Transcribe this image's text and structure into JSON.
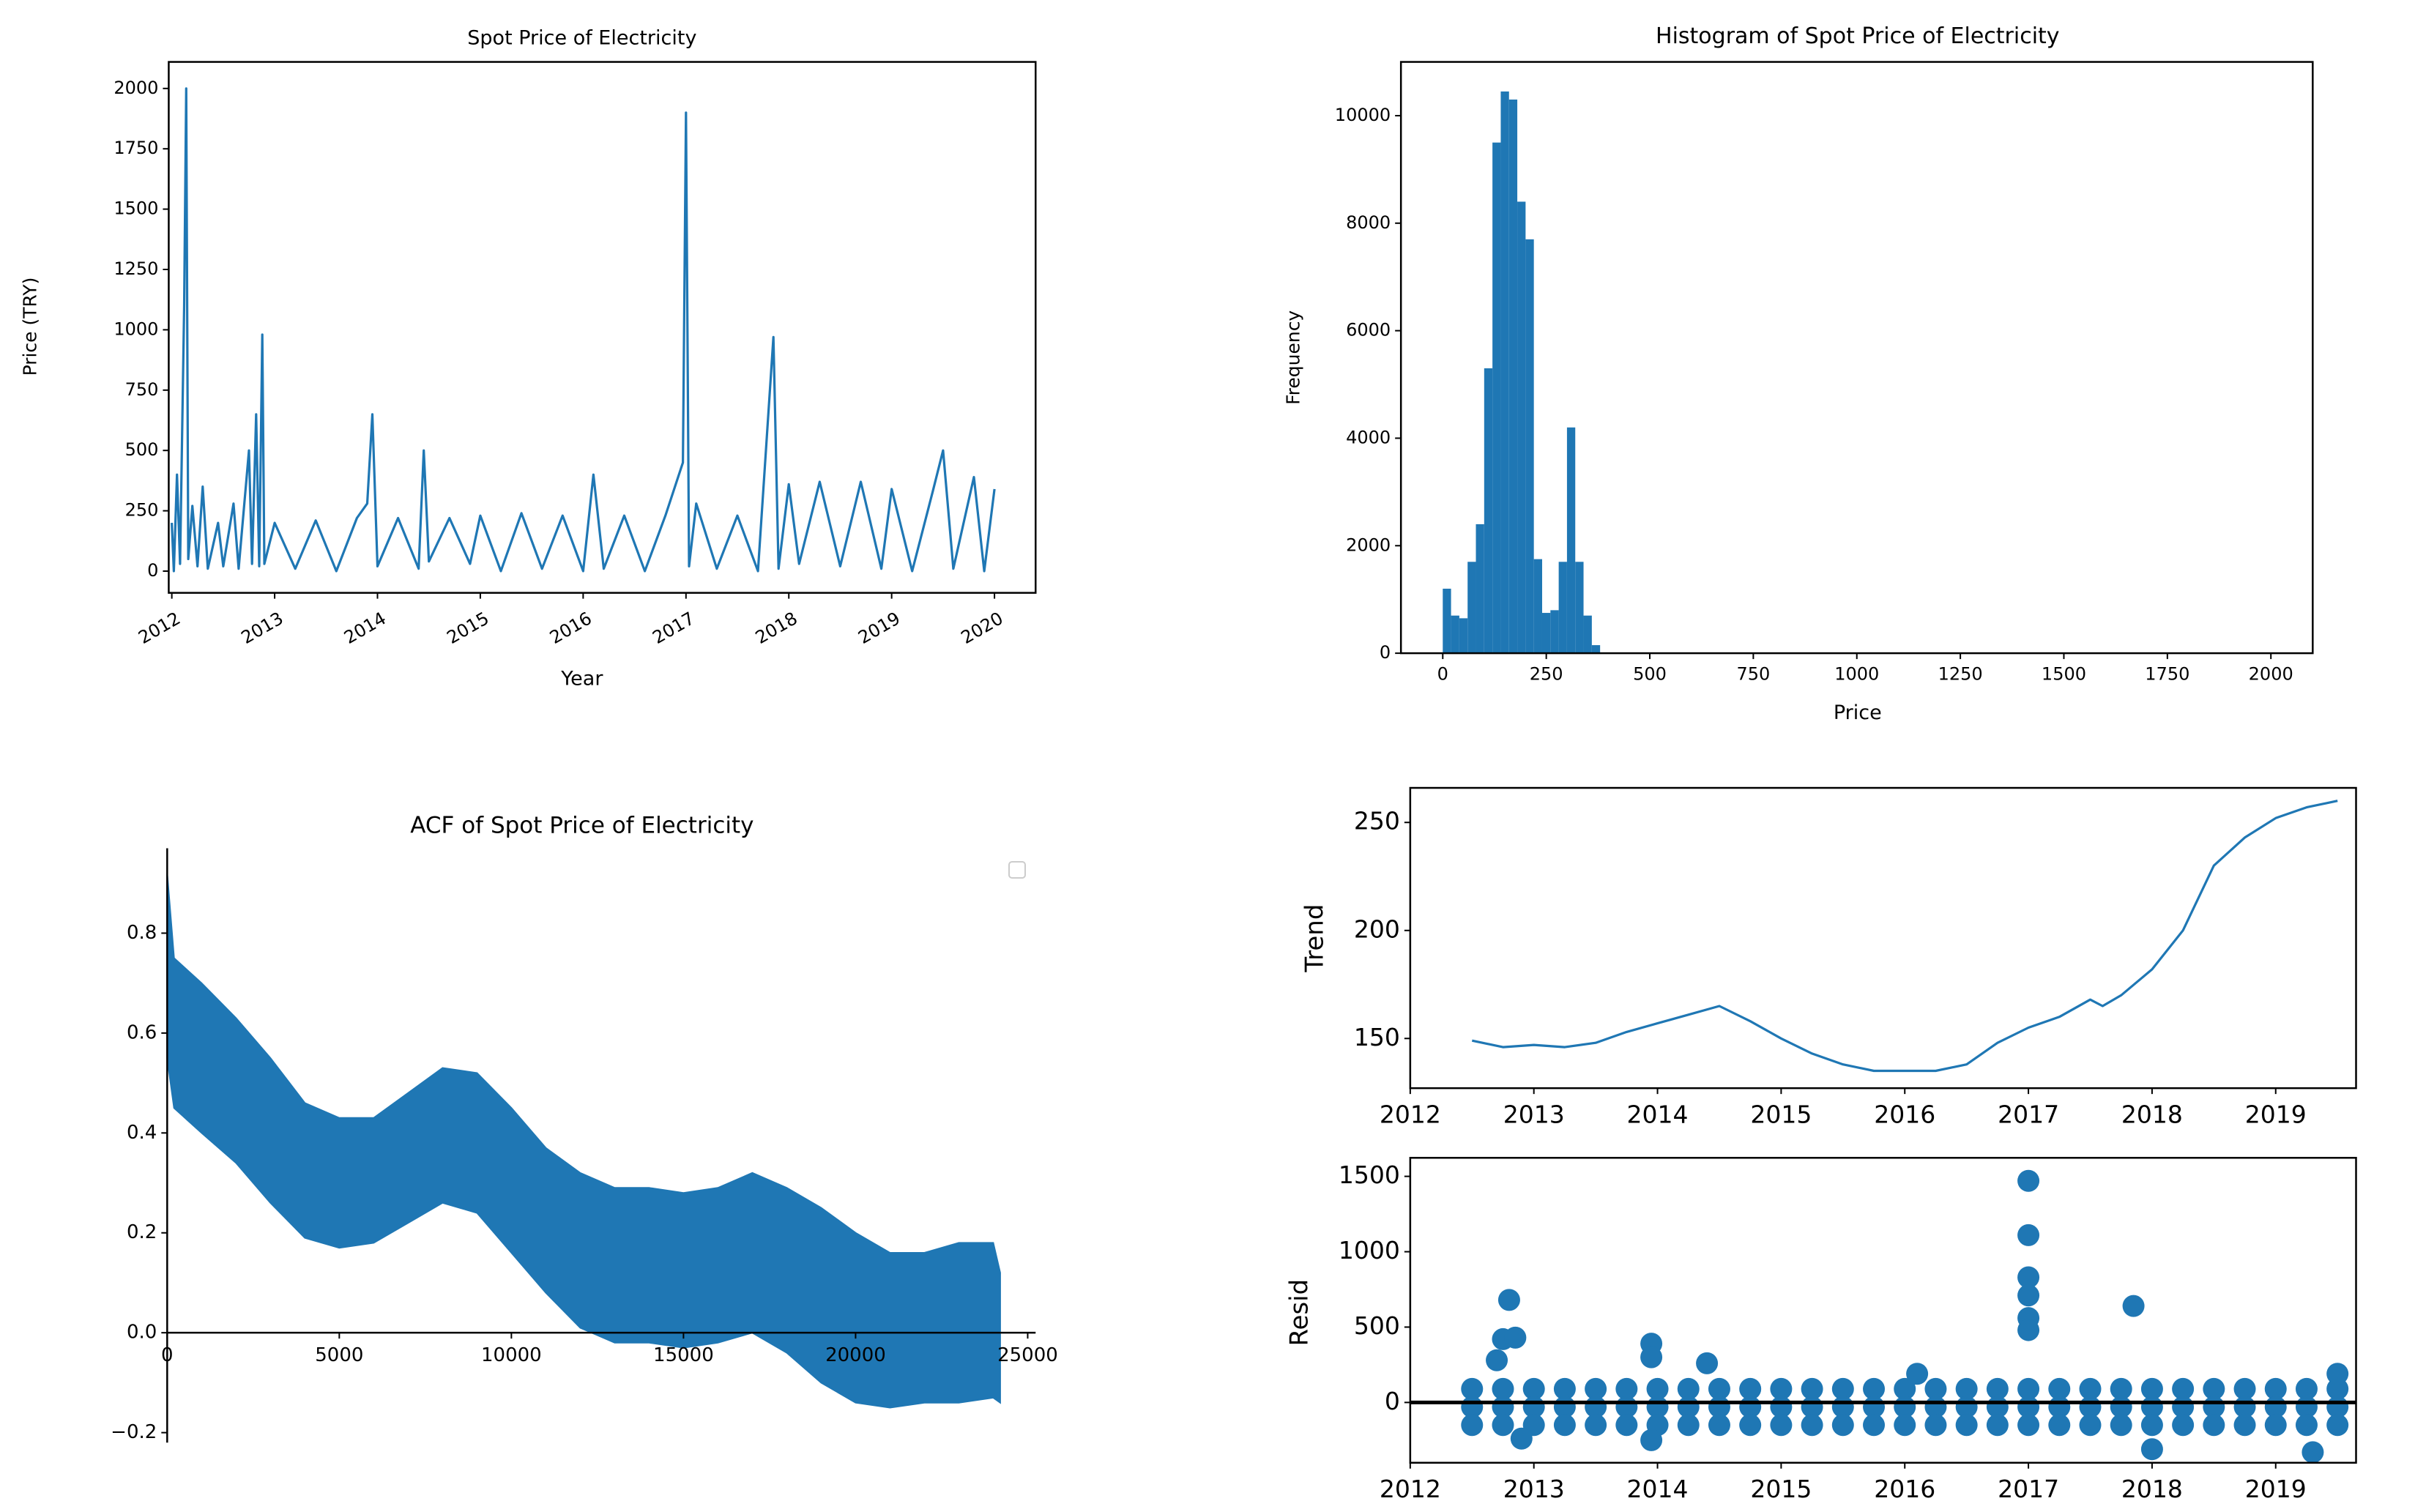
{
  "chart_data": [
    {
      "type": "line",
      "title": "Spot Price of Electricity",
      "x_label": "Year",
      "y_label": "Price (TRY)",
      "color": "#1f77b4",
      "x": [
        2012.0,
        2012.02,
        2012.05,
        2012.08,
        2012.12,
        2012.14,
        2012.16,
        2012.2,
        2012.25,
        2012.3,
        2012.35,
        2012.45,
        2012.5,
        2012.6,
        2012.65,
        2012.75,
        2012.78,
        2012.82,
        2012.85,
        2012.88,
        2012.9,
        2013.0,
        2013.2,
        2013.4,
        2013.6,
        2013.8,
        2013.9,
        2013.95,
        2014.0,
        2014.2,
        2014.4,
        2014.45,
        2014.5,
        2014.7,
        2014.9,
        2015.0,
        2015.2,
        2015.4,
        2015.6,
        2015.8,
        2016.0,
        2016.1,
        2016.2,
        2016.4,
        2016.6,
        2016.8,
        2016.97,
        2017.0,
        2017.03,
        2017.1,
        2017.3,
        2017.5,
        2017.7,
        2017.85,
        2017.9,
        2018.0,
        2018.1,
        2018.3,
        2018.5,
        2018.7,
        2018.9,
        2019.0,
        2019.2,
        2019.4,
        2019.5,
        2019.6,
        2019.8,
        2019.9,
        2020.0
      ],
      "values": [
        200,
        0,
        400,
        30,
        1100,
        2000,
        50,
        270,
        20,
        350,
        10,
        200,
        20,
        280,
        10,
        500,
        30,
        650,
        20,
        980,
        30,
        200,
        10,
        210,
        0,
        220,
        280,
        650,
        20,
        220,
        10,
        500,
        40,
        220,
        30,
        230,
        0,
        240,
        10,
        230,
        0,
        400,
        10,
        230,
        0,
        230,
        450,
        1900,
        20,
        280,
        10,
        230,
        0,
        970,
        10,
        360,
        30,
        370,
        20,
        370,
        10,
        340,
        0,
        330,
        500,
        10,
        390,
        0,
        340
      ],
      "xlim": [
        2011.97,
        2020.4
      ],
      "ylim": [
        -90,
        2110
      ],
      "xticks": [
        2012,
        2013,
        2014,
        2015,
        2016,
        2017,
        2018,
        2019,
        2020
      ],
      "yticks": [
        0,
        250,
        500,
        750,
        1000,
        1250,
        1500,
        1750,
        2000
      ]
    },
    {
      "type": "histogram",
      "title": "Histogram of Spot Price of Electricity",
      "x_label": "Price",
      "y_label": "Frequency",
      "color": "#1f77b4",
      "bins": [
        0,
        20,
        40,
        60,
        80,
        100,
        120,
        140,
        160,
        180,
        200,
        220,
        240,
        260,
        280,
        300,
        320,
        340,
        360,
        380
      ],
      "counts": [
        1200,
        700,
        650,
        1700,
        2400,
        5300,
        9500,
        10450,
        10300,
        8400,
        7700,
        1750,
        750,
        800,
        1700,
        4200,
        1700,
        700,
        150
      ],
      "xlim": [
        -101,
        2101
      ],
      "ylim": [
        0,
        11000
      ],
      "xticks": [
        0,
        250,
        500,
        750,
        1000,
        1250,
        1500,
        1750,
        2000
      ],
      "yticks": [
        0,
        2000,
        4000,
        6000,
        8000,
        10000
      ]
    },
    {
      "type": "area",
      "title": "ACF of Spot Price of Electricity",
      "color": "#1f77b4",
      "x": [
        0,
        200,
        1000,
        2000,
        3000,
        4000,
        5000,
        6000,
        7000,
        8000,
        9000,
        10000,
        11000,
        12000,
        13000,
        14000,
        15000,
        16000,
        17000,
        18000,
        19000,
        20000,
        21000,
        22000,
        23000,
        24000,
        24200
      ],
      "upper": [
        0.92,
        0.75,
        0.7,
        0.63,
        0.55,
        0.46,
        0.43,
        0.43,
        0.48,
        0.53,
        0.52,
        0.45,
        0.37,
        0.32,
        0.29,
        0.29,
        0.28,
        0.29,
        0.32,
        0.29,
        0.25,
        0.2,
        0.16,
        0.16,
        0.18,
        0.18,
        0.12
      ],
      "lower": [
        0.55,
        0.45,
        0.4,
        0.34,
        0.26,
        0.19,
        0.17,
        0.18,
        0.22,
        0.26,
        0.24,
        0.16,
        0.08,
        0.01,
        -0.02,
        -0.02,
        -0.03,
        -0.02,
        0.0,
        -0.04,
        -0.1,
        -0.14,
        -0.15,
        -0.14,
        -0.14,
        -0.13,
        -0.14
      ],
      "xlim": [
        0,
        25230
      ],
      "ylim": [
        -0.22,
        0.97
      ],
      "xticks": [
        0,
        5000,
        10000,
        15000,
        20000,
        25000
      ],
      "yticks": [
        {
          "value": -0.2,
          "label": "−0.2"
        },
        {
          "value": 0,
          "label": "0.0"
        },
        {
          "value": 0.2,
          "label": "0.2"
        },
        {
          "value": 0.4,
          "label": "0.4"
        },
        {
          "value": 0.6,
          "label": "0.6"
        },
        {
          "value": 0.8,
          "label": "0.8"
        }
      ]
    },
    {
      "type": "line",
      "y_label": "Trend",
      "color": "#1f77b4",
      "x": [
        2012.5,
        2012.75,
        2013,
        2013.25,
        2013.5,
        2013.75,
        2014,
        2014.25,
        2014.5,
        2014.75,
        2015,
        2015.25,
        2015.5,
        2015.75,
        2016,
        2016.25,
        2016.5,
        2016.75,
        2017,
        2017.25,
        2017.5,
        2017.6,
        2017.75,
        2018,
        2018.25,
        2018.5,
        2018.75,
        2019,
        2019.25,
        2019.5
      ],
      "values": [
        149,
        146,
        147,
        146,
        148,
        153,
        157,
        161,
        165,
        158,
        150,
        143,
        138,
        135,
        135,
        135,
        138,
        148,
        155,
        160,
        168,
        165,
        170,
        182,
        200,
        230,
        243,
        252,
        257,
        260
      ],
      "xlim": [
        2012,
        2019.65
      ],
      "ylim": [
        127,
        266
      ],
      "xticks": [
        2012,
        2013,
        2014,
        2015,
        2016,
        2017,
        2018,
        2019
      ],
      "yticks": [
        150,
        200,
        250
      ]
    },
    {
      "type": "scatter",
      "y_label": "Resid",
      "color": "#1f77b4",
      "hline": 0,
      "x": [
        2012.5,
        2012.5,
        2012.5,
        2012.75,
        2012.75,
        2012.75,
        2013,
        2013,
        2013,
        2013.25,
        2013.25,
        2013.25,
        2013.5,
        2013.5,
        2013.5,
        2013.75,
        2013.75,
        2013.75,
        2014,
        2014,
        2014,
        2014.25,
        2014.25,
        2014.25,
        2014.5,
        2014.5,
        2014.5,
        2014.75,
        2014.75,
        2014.75,
        2015,
        2015,
        2015,
        2015.25,
        2015.25,
        2015.25,
        2015.5,
        2015.5,
        2015.5,
        2015.75,
        2015.75,
        2015.75,
        2016,
        2016,
        2016,
        2016.25,
        2016.25,
        2016.25,
        2016.5,
        2016.5,
        2016.5,
        2016.75,
        2016.75,
        2016.75,
        2017,
        2017,
        2017,
        2017.25,
        2017.25,
        2017.25,
        2017.5,
        2017.5,
        2017.5,
        2017.75,
        2017.75,
        2017.75,
        2018,
        2018,
        2018,
        2018.25,
        2018.25,
        2018.25,
        2018.5,
        2018.5,
        2018.5,
        2018.75,
        2018.75,
        2018.75,
        2019,
        2019,
        2019,
        2019.25,
        2019.25,
        2019.25,
        2019.5,
        2019.5,
        2019.5,
        2012.7,
        2012.75,
        2012.8,
        2012.85,
        2012.9,
        2013.95,
        2013.95,
        2013.95,
        2014.4,
        2016.1,
        2017,
        2017,
        2017,
        2017,
        2017,
        2017,
        2017.85,
        2018,
        2019.3,
        2019.5
      ],
      "y": [
        90,
        -30,
        -150,
        90,
        -30,
        -150,
        90,
        -30,
        -150,
        90,
        -30,
        -150,
        90,
        -30,
        -150,
        90,
        -30,
        -150,
        90,
        -30,
        -150,
        90,
        -30,
        -150,
        90,
        -30,
        -150,
        90,
        -30,
        -150,
        90,
        -30,
        -150,
        90,
        -30,
        -150,
        90,
        -30,
        -150,
        90,
        -30,
        -150,
        90,
        -30,
        -150,
        90,
        -30,
        -150,
        90,
        -30,
        -150,
        90,
        -30,
        -150,
        90,
        -30,
        -150,
        90,
        -30,
        -150,
        90,
        -30,
        -150,
        90,
        -30,
        -150,
        90,
        -30,
        -150,
        90,
        -30,
        -150,
        90,
        -30,
        -150,
        90,
        -30,
        -150,
        90,
        -30,
        -150,
        90,
        -30,
        -150,
        90,
        -30,
        -150,
        280,
        420,
        680,
        430,
        -240,
        390,
        300,
        -250,
        260,
        190,
        1470,
        1110,
        830,
        710,
        560,
        480,
        640,
        -310,
        -330,
        190
      ],
      "xlim": [
        2012,
        2019.65
      ],
      "ylim": [
        -400,
        1623
      ],
      "xticks": [
        2012,
        2013,
        2014,
        2015,
        2016,
        2017,
        2018,
        2019
      ],
      "yticks": [
        0,
        500,
        1000,
        1500
      ]
    }
  ]
}
